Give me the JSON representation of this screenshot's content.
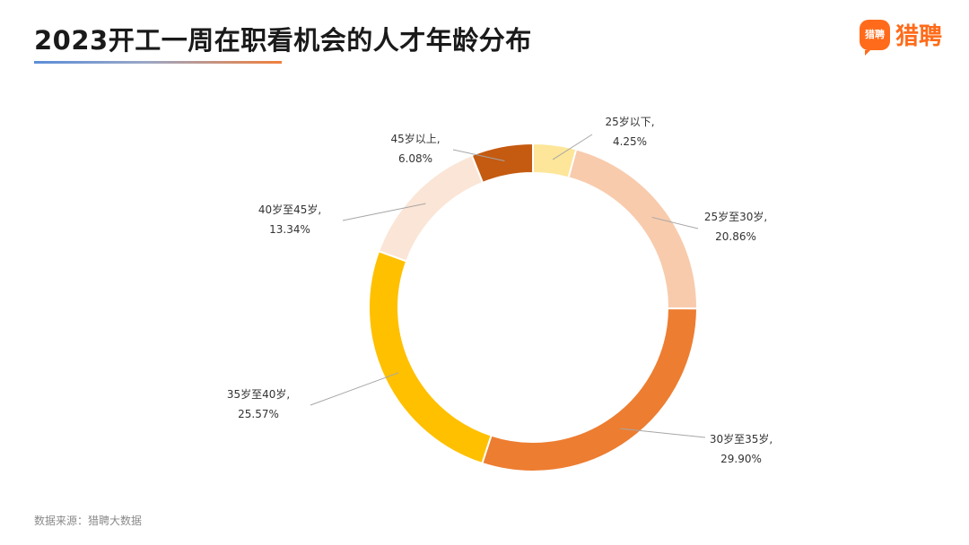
{
  "header": {
    "title": "2023开工一周在职看机会的人才年龄分布",
    "logo_mark_text": "猎聘",
    "logo_text": "猎聘"
  },
  "footer": {
    "source": "数据来源：猎聘大数据"
  },
  "chart_data": {
    "type": "pie",
    "donut": true,
    "title": "2023开工一周在职看机会的人才年龄分布",
    "legend": "none",
    "slices": [
      {
        "label": "25岁以下,",
        "value": 4.25,
        "value_label": "4.25%",
        "color": "#fde699"
      },
      {
        "label": "25岁至30岁,",
        "value": 20.86,
        "value_label": "20.86%",
        "color": "#f8cbad"
      },
      {
        "label": "30岁至35岁,",
        "value": 29.9,
        "value_label": "29.90%",
        "color": "#ed7d31"
      },
      {
        "label": "35岁至40岁,",
        "value": 25.57,
        "value_label": "25.57%",
        "color": "#ffc000"
      },
      {
        "label": "40岁至45岁,",
        "value": 13.34,
        "value_label": "13.34%",
        "color": "#fbe5d6"
      },
      {
        "label": "45岁以上,",
        "value": 6.08,
        "value_label": "6.08%",
        "color": "#c55a11"
      }
    ]
  }
}
